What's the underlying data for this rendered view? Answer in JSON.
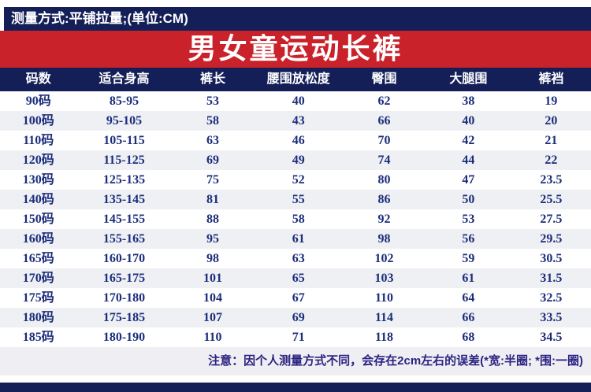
{
  "meta_bar": {
    "text": "测量方式:平铺拉量;(单位:CM)"
  },
  "banner": {
    "title": "男女童运动长裤"
  },
  "size_table": {
    "columns": [
      "码数",
      "适合身高",
      "裤长",
      "腰围放松度",
      "臀围",
      "大腿围",
      "裤裆"
    ],
    "rows": [
      [
        "90码",
        "85-95",
        "53",
        "40",
        "62",
        "38",
        "19"
      ],
      [
        "100码",
        "95-105",
        "58",
        "43",
        "66",
        "40",
        "20"
      ],
      [
        "110码",
        "105-115",
        "63",
        "46",
        "70",
        "42",
        "21"
      ],
      [
        "120码",
        "115-125",
        "69",
        "49",
        "74",
        "44",
        "22"
      ],
      [
        "130码",
        "125-135",
        "75",
        "52",
        "80",
        "47",
        "23.5"
      ],
      [
        "140码",
        "135-145",
        "81",
        "55",
        "86",
        "50",
        "25.5"
      ],
      [
        "150码",
        "145-155",
        "88",
        "58",
        "92",
        "53",
        "27.5"
      ],
      [
        "160码",
        "155-165",
        "95",
        "61",
        "98",
        "56",
        "29.5"
      ],
      [
        "165码",
        "160-170",
        "98",
        "63",
        "102",
        "59",
        "30.5"
      ],
      [
        "170码",
        "165-175",
        "101",
        "65",
        "103",
        "61",
        "31.5"
      ],
      [
        "175码",
        "170-180",
        "104",
        "67",
        "110",
        "64",
        "32.5"
      ],
      [
        "180码",
        "175-185",
        "107",
        "69",
        "114",
        "66",
        "33.5"
      ],
      [
        "185码",
        "180-190",
        "110",
        "71",
        "118",
        "68",
        "34.5"
      ]
    ]
  },
  "note": {
    "text": "注意：因个人测量方式不同，会存在2cm左右的误差(*宽:半圈; *围:一圈)"
  },
  "colors": {
    "navy": "#141f58",
    "red": "#c9222a",
    "row_stripe": "#eef0f4",
    "note_bg": "#efeff3",
    "data_text": "#1c2d7b",
    "note_text": "#2b2382",
    "header_text": "#ffffff"
  }
}
